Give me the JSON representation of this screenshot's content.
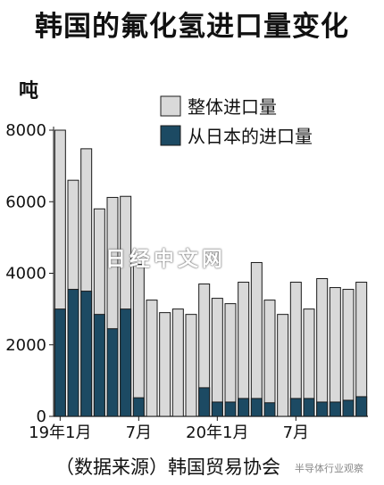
{
  "title": "韩国的氟化氢进口量变化",
  "unit": "吨",
  "source": "（数据来源）韩国贸易协会",
  "watermark": "日经中文网",
  "corner_watermark": "半导体行业观察",
  "colors": {
    "total": "#d9d9d9",
    "japan": "#1c4a63",
    "outline": "#1a1a1a"
  },
  "chart_data": {
    "type": "bar",
    "title": "韩国的氟化氢进口量变化",
    "ylabel": "吨",
    "xlabel": "",
    "ylim": [
      0,
      8000
    ],
    "yticks": [
      0,
      2000,
      4000,
      6000,
      8000
    ],
    "x_tick_labels": [
      {
        "index": 0,
        "text": "19年1月"
      },
      {
        "index": 6,
        "text": "7月"
      },
      {
        "index": 12,
        "text": "20年1月"
      },
      {
        "index": 18,
        "text": "7月"
      }
    ],
    "legend": [
      "整体进口量",
      "从日本的进口量"
    ],
    "legend_position": "top-right",
    "grid": false,
    "series": [
      {
        "name": "整体进口量",
        "values": [
          8000,
          6600,
          7480,
          5800,
          6120,
          6150,
          4250,
          3250,
          2900,
          3000,
          2850,
          3700,
          3300,
          3150,
          3750,
          4300,
          3250,
          2850,
          3750,
          3000,
          3850,
          3600,
          3550,
          3750
        ]
      },
      {
        "name": "从日本的进口量",
        "values": [
          3000,
          3550,
          3500,
          2850,
          2450,
          3000,
          520,
          0,
          0,
          0,
          0,
          800,
          400,
          400,
          500,
          500,
          380,
          0,
          500,
          500,
          400,
          400,
          450,
          550
        ]
      }
    ]
  }
}
